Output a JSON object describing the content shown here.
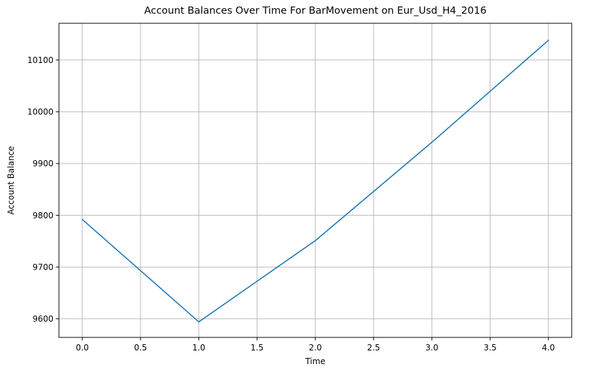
{
  "chart_data": {
    "type": "line",
    "title": "Account Balances Over Time For BarMovement on Eur_Usd_H4_2016",
    "xlabel": "Time",
    "ylabel": "Account Balance",
    "xlim": [
      -0.2,
      4.2
    ],
    "ylim": [
      9564,
      10171
    ],
    "xticks": [
      0.0,
      0.5,
      1.0,
      1.5,
      2.0,
      2.5,
      3.0,
      3.5,
      4.0
    ],
    "xtick_labels": [
      "0.0",
      "0.5",
      "1.0",
      "1.5",
      "2.0",
      "2.5",
      "3.0",
      "3.5",
      "4.0"
    ],
    "yticks": [
      9600,
      9700,
      9800,
      9900,
      10000,
      10100
    ],
    "ytick_labels": [
      "9600",
      "9700",
      "9800",
      "9900",
      "10000",
      "10100"
    ],
    "grid": true,
    "series": [
      {
        "color": "#1f77b4",
        "x": [
          0,
          1,
          2,
          3,
          4
        ],
        "y": [
          9792,
          9594,
          9751,
          9941,
          10138
        ]
      }
    ]
  }
}
